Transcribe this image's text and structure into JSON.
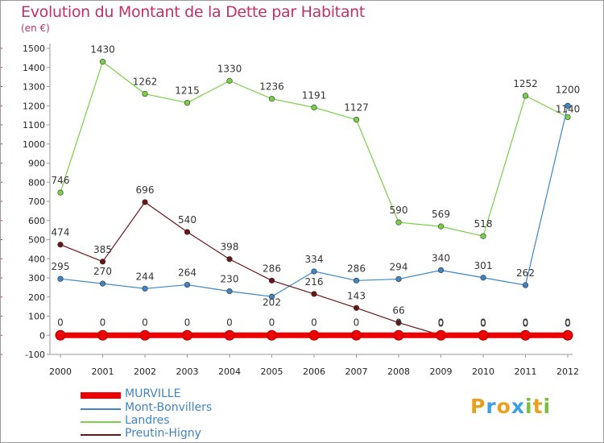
{
  "header": {
    "title": "Evolution du Montant de la Dette par Habitant",
    "subtitle": "(en €)"
  },
  "colors": {
    "title": "#c0306a",
    "MURVILLE": "#ee0000",
    "Mont-Bonvillers": "#3f85c3",
    "Landres": "#78d044",
    "Preutin-Higny": "#6b1414"
  },
  "chart_data": {
    "type": "line",
    "title": "Evolution du Montant de la Dette par Habitant",
    "subtitle": "(en €)",
    "xlabel": "",
    "ylabel": "",
    "categories": [
      "2000",
      "2001",
      "2002",
      "2003",
      "2004",
      "2005",
      "2006",
      "2007",
      "2008",
      "2009",
      "2010",
      "2011",
      "2012"
    ],
    "ylim": [
      -100,
      1500
    ],
    "yticks": [
      -100,
      0,
      100,
      200,
      300,
      400,
      500,
      600,
      700,
      800,
      900,
      1000,
      1100,
      1200,
      1300,
      1400,
      1500
    ],
    "grid": false,
    "legend_position": "bottom-left",
    "series": [
      {
        "name": "MURVILLE",
        "values": [
          0,
          0,
          0,
          0,
          0,
          0,
          0,
          0,
          0,
          0,
          0,
          0,
          0
        ]
      },
      {
        "name": "Mont-Bonvillers",
        "values": [
          295,
          270,
          244,
          264,
          230,
          202,
          334,
          286,
          294,
          340,
          301,
          262,
          1200
        ]
      },
      {
        "name": "Landres",
        "values": [
          746,
          1430,
          1262,
          1215,
          1330,
          1236,
          1191,
          1127,
          590,
          569,
          518,
          1252,
          1140
        ]
      },
      {
        "name": "Preutin-Higny",
        "values": [
          474,
          385,
          696,
          540,
          398,
          286,
          216,
          143,
          66,
          0,
          0,
          0,
          0
        ]
      }
    ]
  },
  "legend": {
    "items": [
      "MURVILLE",
      "Mont-Bonvillers",
      "Landres",
      "Preutin-Higny"
    ]
  },
  "logo": {
    "letters": [
      "P",
      "r",
      "o",
      "x",
      "i",
      "t",
      "i"
    ],
    "colors": [
      "#e8a020",
      "#3fa0e0",
      "#e8a020",
      "#3fa0e0",
      "#78c040",
      "#e8a020",
      "#78c040"
    ]
  }
}
